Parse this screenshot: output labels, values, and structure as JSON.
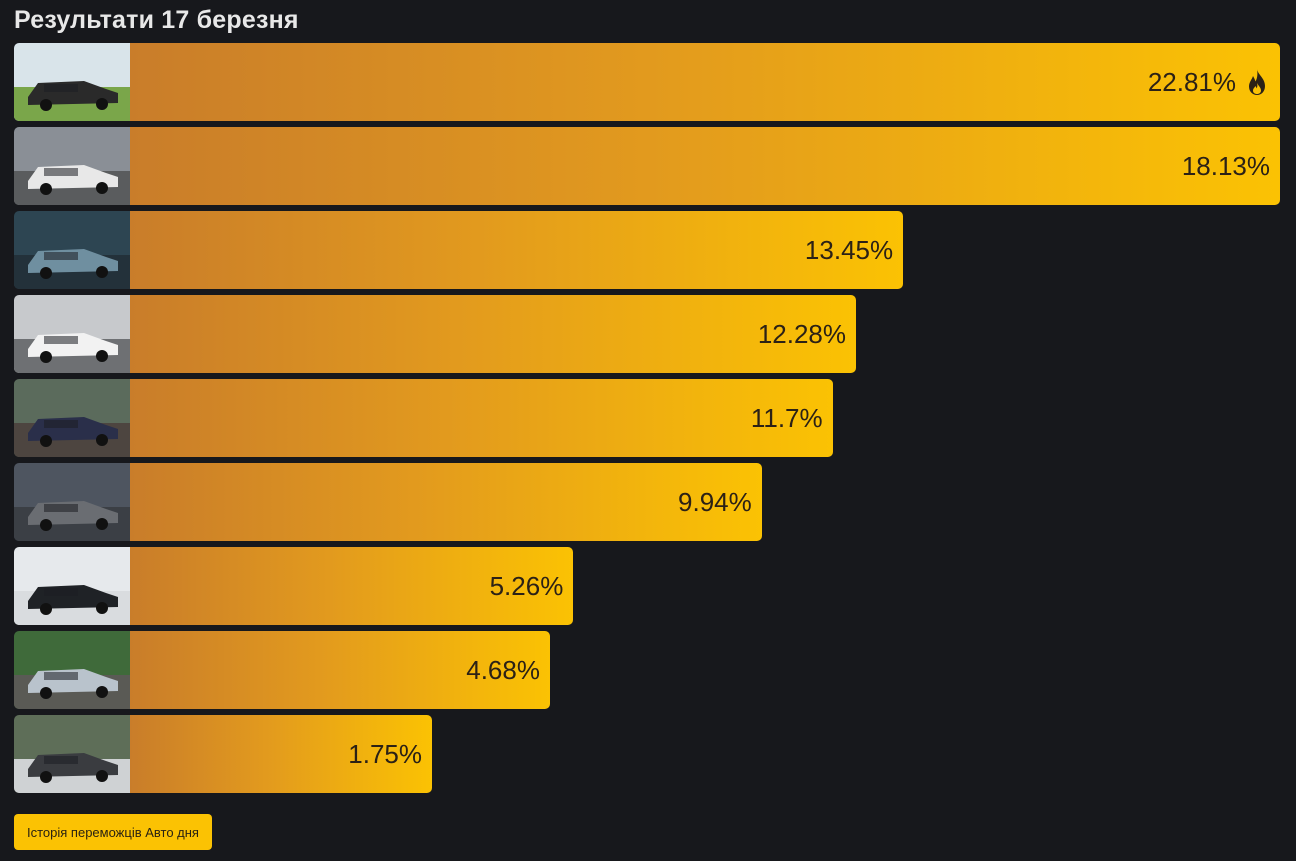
{
  "title": "Результати 17 березня",
  "results": [
    {
      "percent": 22.81,
      "label": "22.81%",
      "winner": true,
      "scene": {
        "sky": "#d9e4ea",
        "ground": "#7aa64a",
        "car": "#2a2a2a"
      }
    },
    {
      "percent": 18.13,
      "label": "18.13%",
      "winner": false,
      "scene": {
        "sky": "#8a8f96",
        "ground": "#5a5c5e",
        "car": "#e8e8e8"
      }
    },
    {
      "percent": 13.45,
      "label": "13.45%",
      "winner": false,
      "scene": {
        "sky": "#2d4552",
        "ground": "#23313a",
        "car": "#6f8fa0"
      }
    },
    {
      "percent": 12.28,
      "label": "12.28%",
      "winner": false,
      "scene": {
        "sky": "#c7c9cc",
        "ground": "#6e7073",
        "car": "#f2f2f2"
      }
    },
    {
      "percent": 11.7,
      "label": "11.7%",
      "winner": false,
      "scene": {
        "sky": "#5b6b5c",
        "ground": "#4d4540",
        "car": "#2a2f4a"
      }
    },
    {
      "percent": 9.94,
      "label": "9.94%",
      "winner": false,
      "scene": {
        "sky": "#4e5560",
        "ground": "#3b3f45",
        "car": "#6a6d72"
      }
    },
    {
      "percent": 5.26,
      "label": "5.26%",
      "winner": false,
      "scene": {
        "sky": "#e6e9ec",
        "ground": "#d9dcdf",
        "car": "#1f2226"
      }
    },
    {
      "percent": 4.68,
      "label": "4.68%",
      "winner": false,
      "scene": {
        "sky": "#3f6a3a",
        "ground": "#5a5a55",
        "car": "#b9c3cc"
      }
    },
    {
      "percent": 1.75,
      "label": "1.75%",
      "winner": false,
      "scene": {
        "sky": "#5e6e58",
        "ground": "#cfd2d4",
        "car": "#3a3c40"
      }
    }
  ],
  "history_button": "Історія переможців Авто дня",
  "colors": {
    "bar_start": "#c97d2a",
    "bar_end": "#fbc203",
    "background": "#17181c",
    "button": "#fbc203"
  }
}
